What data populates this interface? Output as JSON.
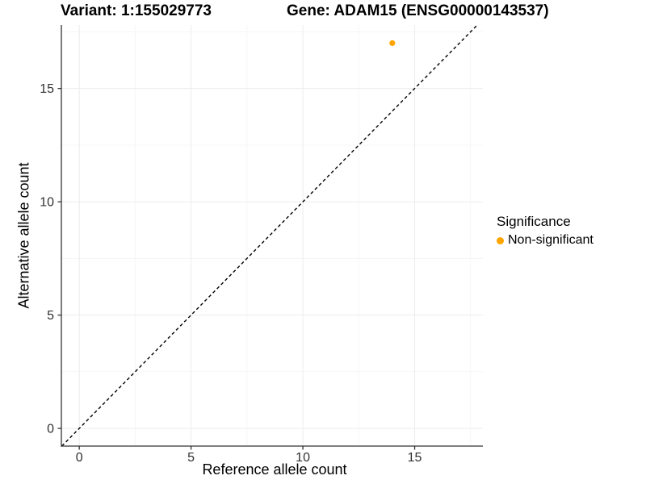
{
  "chart_data": {
    "type": "scatter",
    "title_left": "Variant: 1:155029773",
    "title_right": "Gene: ADAM15 (ENSG00000143537)",
    "xlabel": "Reference allele count",
    "ylabel": "Alternative allele count",
    "xlim": [
      -0.8,
      18.05
    ],
    "ylim": [
      -0.78,
      17.8
    ],
    "x_major_ticks": [
      0,
      5,
      10,
      15
    ],
    "y_major_ticks": [
      0,
      5,
      10,
      15
    ],
    "x_minor_ticks": [
      2.5,
      7.5,
      12.5,
      17.5
    ],
    "y_minor_ticks": [
      2.5,
      7.5,
      12.5,
      17.5
    ],
    "grid": true,
    "series": [
      {
        "name": "Non-significant",
        "color": "#FFA500",
        "points": [
          {
            "x": 14,
            "y": 17
          }
        ]
      }
    ],
    "reference_line": {
      "type": "diagonal",
      "equation": "y = x",
      "style": "dashed",
      "color": "#000000"
    },
    "legend": {
      "position": "right",
      "title": "Significance",
      "entries": [
        {
          "label": "Non-significant",
          "color": "#FFA500"
        }
      ]
    },
    "style": {
      "axis_line_color": "#333333",
      "tick_label_color": "#303030",
      "major_grid_color": "#ececec",
      "minor_grid_color": "#f5f5f5",
      "background": "#ffffff"
    }
  }
}
